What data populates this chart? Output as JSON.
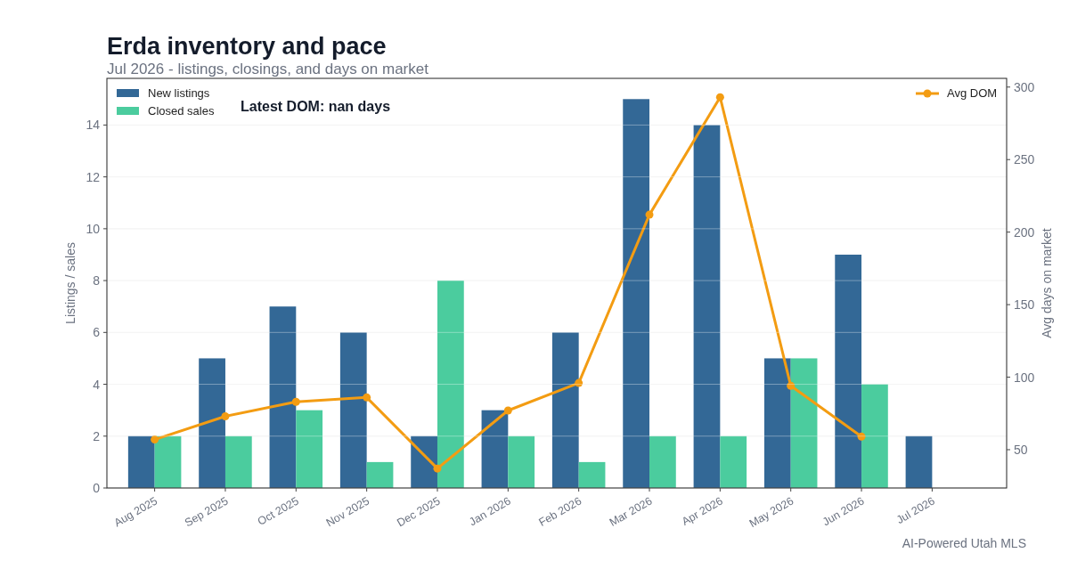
{
  "chart_data": {
    "type": "bar",
    "title": "Erda inventory and pace",
    "subtitle": "Jul 2026 - listings, closings, and days on market",
    "ylabel": "Listings / sales",
    "y2label": "Avg days on market",
    "categories": [
      "Aug 2025",
      "Sep 2025",
      "Oct 2025",
      "Nov 2025",
      "Dec 2025",
      "Jan 2026",
      "Feb 2026",
      "Mar 2026",
      "Apr 2026",
      "May 2026",
      "Jun 2026",
      "Jul 2026"
    ],
    "series": [
      {
        "name": "New listings",
        "color": "#336896",
        "values": [
          2,
          5,
          7,
          6,
          2,
          3,
          6,
          15,
          14,
          5,
          9,
          2
        ]
      },
      {
        "name": "Closed sales",
        "color": "#4bcc9e",
        "values": [
          2,
          2,
          3,
          1,
          8,
          2,
          1,
          2,
          2,
          5,
          4,
          null
        ]
      },
      {
        "name": "Avg DOM",
        "type": "line",
        "axis": "y2",
        "color": "#f39c12",
        "values": [
          57,
          73,
          83,
          86,
          37,
          77,
          96,
          212,
          293,
          94,
          59,
          null
        ]
      }
    ],
    "ylim": [
      0,
      15.8
    ],
    "yticks": [
      0,
      2,
      4,
      6,
      8,
      10,
      12,
      14
    ],
    "y2lim": [
      23.6,
      306
    ],
    "y2ticks": [
      50,
      100,
      150,
      200,
      250,
      300
    ],
    "grid": "y",
    "legend": "top",
    "marker": "circle",
    "annotations": [
      "Latest DOM: nan days",
      "AI-Powered Utah MLS"
    ]
  }
}
